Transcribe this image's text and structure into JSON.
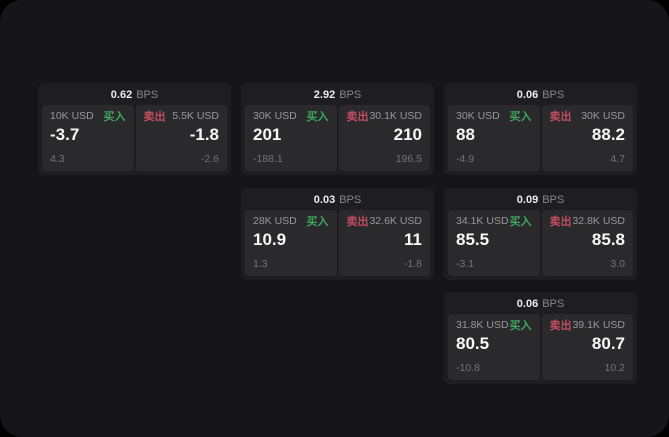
{
  "labels": {
    "bps_unit": "BPS",
    "buy": "买入",
    "sell": "卖出"
  },
  "colors": {
    "background": "#000000",
    "surface": "#161618",
    "card": "#1e1e21",
    "panel": "#2a2a2d",
    "buy_green": "#3ea55d",
    "sell_red": "#c14d60",
    "value_white": "#f7f7f7",
    "label_gray": "#98989d",
    "sub_gray": "#737378"
  },
  "cards": [
    {
      "bps": "0.62",
      "grid": {
        "row": 1,
        "col": 1
      },
      "buy": {
        "amount": "10K USD",
        "price": "-3.7",
        "sub": "4.3"
      },
      "sell": {
        "amount": "5.5K USD",
        "price": "-1.8",
        "sub": "-2.6"
      }
    },
    {
      "bps": "2.92",
      "grid": {
        "row": 1,
        "col": 2
      },
      "buy": {
        "amount": "30K USD",
        "price": "201",
        "sub": "-188.1"
      },
      "sell": {
        "amount": "30.1K USD",
        "price": "210",
        "sub": "196.5"
      }
    },
    {
      "bps": "0.06",
      "grid": {
        "row": 1,
        "col": 3
      },
      "buy": {
        "amount": "30K USD",
        "price": "88",
        "sub": "-4.9"
      },
      "sell": {
        "amount": "30K USD",
        "price": "88.2",
        "sub": "4.7"
      }
    },
    {
      "bps": "0.03",
      "grid": {
        "row": 2,
        "col": 2
      },
      "buy": {
        "amount": "28K USD",
        "price": "10.9",
        "sub": "1.3"
      },
      "sell": {
        "amount": "32.6K USD",
        "price": "11",
        "sub": "-1.8"
      }
    },
    {
      "bps": "0.09",
      "grid": {
        "row": 2,
        "col": 3
      },
      "buy": {
        "amount": "34.1K USD",
        "price": "85.5",
        "sub": "-3.1"
      },
      "sell": {
        "amount": "32.8K USD",
        "price": "85.8",
        "sub": "3.0"
      }
    },
    {
      "bps": "0.06",
      "grid": {
        "row": 3,
        "col": 3
      },
      "buy": {
        "amount": "31.8K USD",
        "price": "80.5",
        "sub": "-10.8"
      },
      "sell": {
        "amount": "39.1K USD",
        "price": "80.7",
        "sub": "10.2"
      }
    }
  ]
}
